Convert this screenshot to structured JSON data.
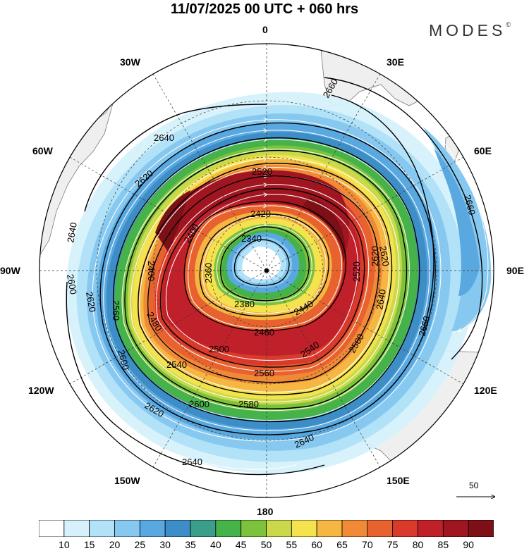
{
  "title": "11/07/2025  00 UTC  + 060 hrs",
  "brand": {
    "name": "MODES",
    "mark": "©"
  },
  "meridian_labels": {
    "lon_0": "0",
    "lon_30e": "30E",
    "lon_60e": "60E",
    "lon_90e": "90E",
    "lon_120e": "120E",
    "lon_150e": "150E",
    "lon_180": "180",
    "lon_150w": "150W",
    "lon_120w": "120W",
    "lon_90w": "90W",
    "lon_60w": "60W",
    "lon_30w": "30W"
  },
  "contour_labels": [
    "2660",
    "2640",
    "2620",
    "2520",
    "2420",
    "2400",
    "2340",
    "2360",
    "2380",
    "2460",
    "2500",
    "2540",
    "2560",
    "2600",
    "2580",
    "2620",
    "2640",
    "2660",
    "2660",
    "2640",
    "2620",
    "2600",
    "2560",
    "2540",
    "2480",
    "2400",
    "2440",
    "2620",
    "2640",
    "2560",
    "2600",
    "2640",
    "2620",
    "2520"
  ],
  "colorbar": {
    "ticks": [
      "10",
      "15",
      "20",
      "25",
      "30",
      "35",
      "40",
      "45",
      "50",
      "55",
      "60",
      "65",
      "70",
      "75",
      "80",
      "85",
      "90"
    ],
    "colors": [
      "#ffffff",
      "#d6f1fc",
      "#b2e2f8",
      "#86c8ef",
      "#5aa8e0",
      "#3d8ec6",
      "#3a9e8a",
      "#46b24a",
      "#7cc23d",
      "#c9d94a",
      "#f5e24f",
      "#f5b642",
      "#f08a37",
      "#e8622f",
      "#d93a2b",
      "#c0202a",
      "#a01520",
      "#7e0f16"
    ]
  },
  "reference_vector": {
    "label": "50"
  },
  "map_features": {
    "land_color": "#efefef",
    "coast_color": "#777777",
    "graticule_color": "#333333",
    "contour_color": "#000000",
    "streamline_color": "#ffffff"
  }
}
